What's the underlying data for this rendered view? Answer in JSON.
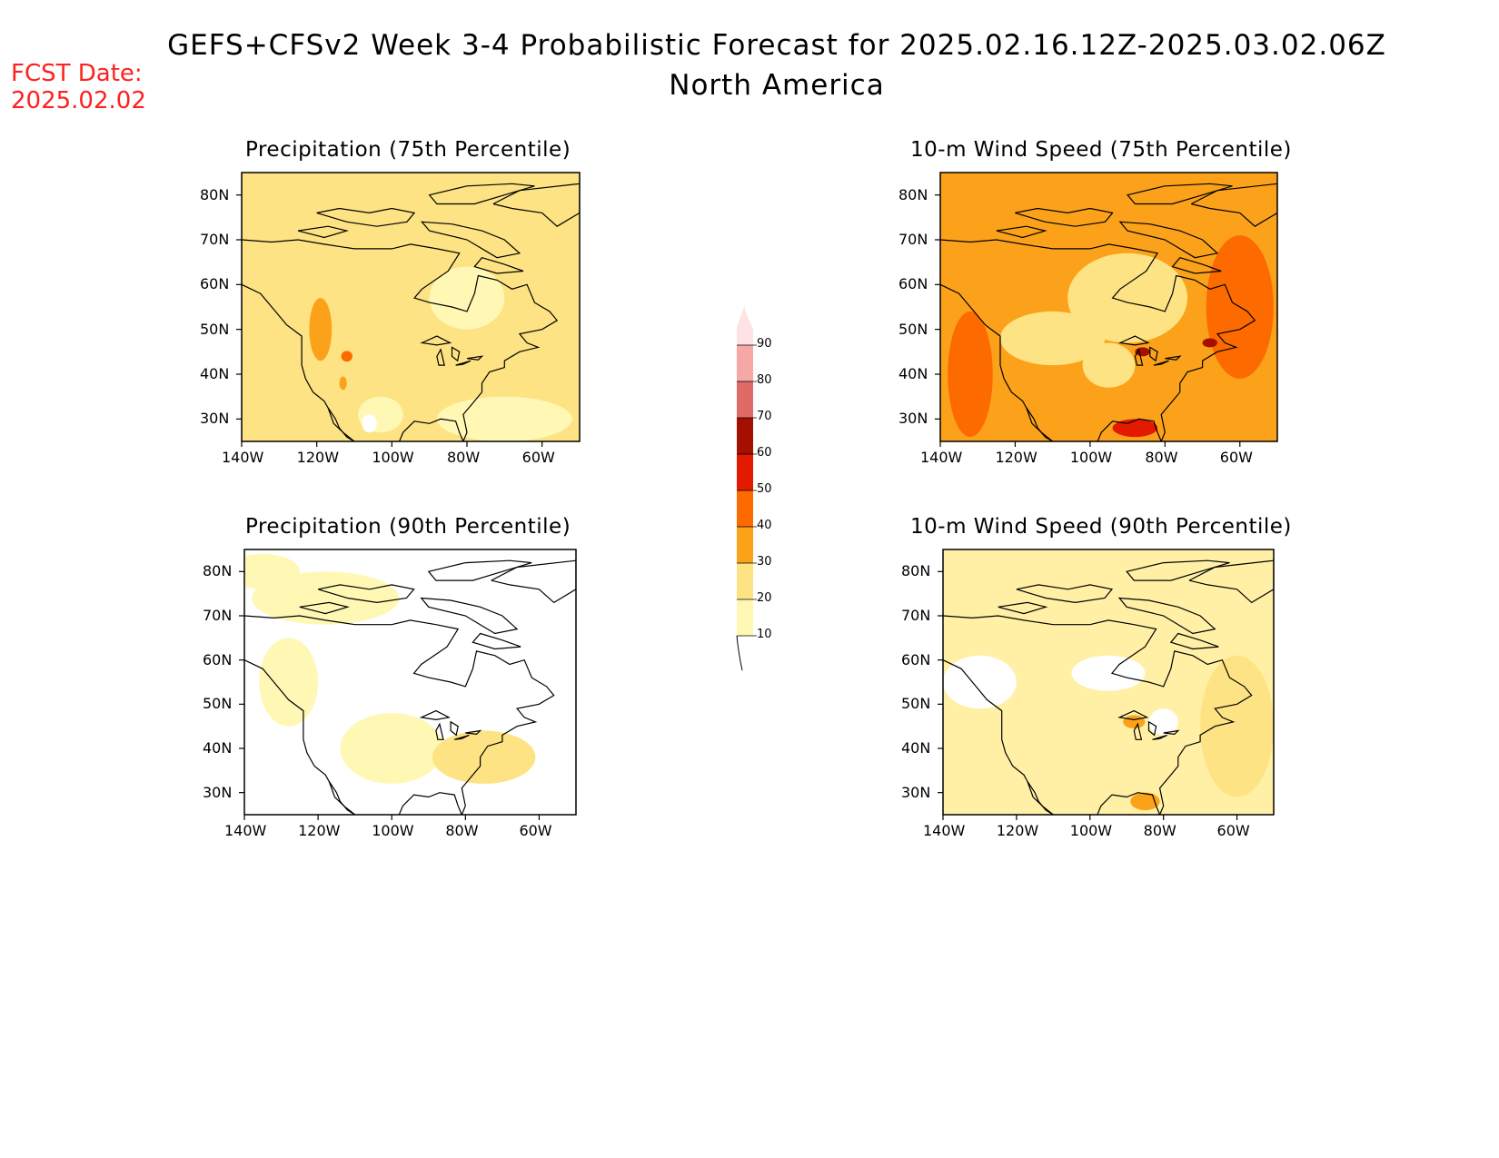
{
  "header": {
    "title": "GEFS+CFSv2 Week 3-4 Probabilistic Forecast for 2025.02.16.12Z-2025.03.02.06Z",
    "subtitle": "North America",
    "fcst_label": "FCST Date:",
    "fcst_value": "2025.02.02"
  },
  "map_data": {
    "lat_ticks": [
      "80N",
      "70N",
      "60N",
      "50N",
      "40N",
      "30N"
    ],
    "lon_ticks": [
      "140W",
      "120W",
      "100W",
      "80W",
      "60W"
    ],
    "lat_range": [
      25,
      85
    ],
    "lon_range": [
      -140,
      -50
    ],
    "panels": [
      {
        "title": "Precipitation (75th Percentile)",
        "fill": "#fde383"
      },
      {
        "title": "10-m Wind Speed (75th Percentile)",
        "fill": "#fba21a"
      },
      {
        "title": "Precipitation (90th Percentile)",
        "fill": "#ffffff"
      },
      {
        "title": "10-m Wind Speed (90th Percentile)",
        "fill": "#fff0a6"
      }
    ]
  },
  "colorbar": {
    "levels": [
      "10",
      "20",
      "30",
      "40",
      "50",
      "60",
      "70",
      "80",
      "90"
    ],
    "colors": [
      "#fff8b5",
      "#fde383",
      "#fba21a",
      "#fd6a00",
      "#e31a00",
      "#a50f00",
      "#df6a66",
      "#f6a8a6",
      "#fde3e3"
    ]
  }
}
